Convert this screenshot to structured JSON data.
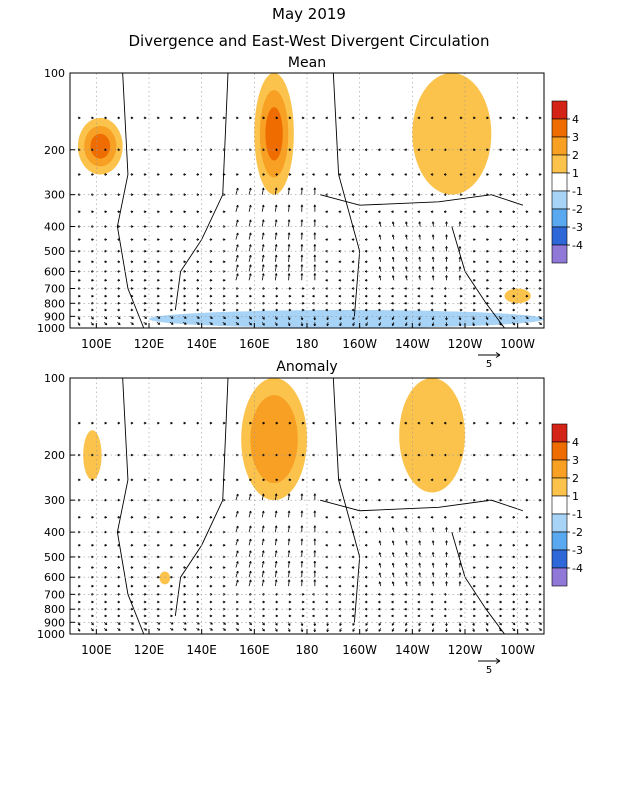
{
  "header": {
    "title": "May 2019",
    "subtitle": "Divergence and East-West Divergent Circulation"
  },
  "chart_data": [
    {
      "type": "heatmap",
      "title": "Mean",
      "xlabel": "",
      "ylabel": "",
      "x_ticks": [
        "100E",
        "120E",
        "140E",
        "160E",
        "180",
        "160W",
        "140W",
        "120W",
        "100W"
      ],
      "y_ticks": [
        "100",
        "200",
        "300",
        "400",
        "500",
        "600",
        "700",
        "800",
        "900",
        "1000"
      ],
      "y_scale": "log",
      "legend_levels": [
        "4",
        "3",
        "2",
        "1",
        "-1",
        "-2",
        "-3",
        "-4"
      ],
      "legend_colors": [
        "#d42418",
        "#ef6c00",
        "#f7a023",
        "#fbc34c",
        "#ffffff",
        "#a7d3f7",
        "#59a8f0",
        "#2e68d8",
        "#8f78d8"
      ],
      "features": [
        {
          "name": "divergence-west-pacific-upper",
          "lon": [
            160,
            175
          ],
          "p": [
            100,
            300
          ],
          "level": 3
        },
        {
          "name": "divergence-maritime-upper",
          "lon": [
            93,
            110
          ],
          "p": [
            150,
            250
          ],
          "level": 3
        },
        {
          "name": "divergence-east-pacific-upper",
          "lon": [
            220,
            250
          ],
          "p": [
            100,
            300
          ],
          "level": 1
        },
        {
          "name": "convergence-lower",
          "lon": [
            120,
            270
          ],
          "p": [
            850,
            1000
          ],
          "level": -1
        },
        {
          "name": "divergence-east-pacific-lower",
          "lon": [
            255,
            265
          ],
          "p": [
            700,
            800
          ],
          "level": 1
        }
      ],
      "vector_scale_label": "5"
    },
    {
      "type": "heatmap",
      "title": "Anomaly",
      "xlabel": "",
      "ylabel": "",
      "x_ticks": [
        "100E",
        "120E",
        "140E",
        "160E",
        "180",
        "160W",
        "140W",
        "120W",
        "100W"
      ],
      "y_ticks": [
        "100",
        "200",
        "300",
        "400",
        "500",
        "600",
        "700",
        "800",
        "900",
        "1000"
      ],
      "y_scale": "log",
      "legend_levels": [
        "4",
        "3",
        "2",
        "1",
        "-1",
        "-2",
        "-3",
        "-4"
      ],
      "legend_colors": [
        "#d42418",
        "#ef6c00",
        "#f7a023",
        "#fbc34c",
        "#ffffff",
        "#a7d3f7",
        "#59a8f0",
        "#2e68d8",
        "#8f78d8"
      ],
      "features": [
        {
          "name": "divergence-west-pacific-upper",
          "lon": [
            155,
            180
          ],
          "p": [
            100,
            300
          ],
          "level": 2
        },
        {
          "name": "divergence-east-pacific-upper",
          "lon": [
            215,
            240
          ],
          "p": [
            100,
            280
          ],
          "level": 1
        },
        {
          "name": "divergence-maritime-upper",
          "lon": [
            95,
            102
          ],
          "p": [
            160,
            250
          ],
          "level": 1
        },
        {
          "name": "divergence-mid",
          "lon": [
            124,
            128
          ],
          "p": [
            570,
            640
          ],
          "level": 1
        }
      ],
      "vector_scale_label": "5"
    }
  ]
}
